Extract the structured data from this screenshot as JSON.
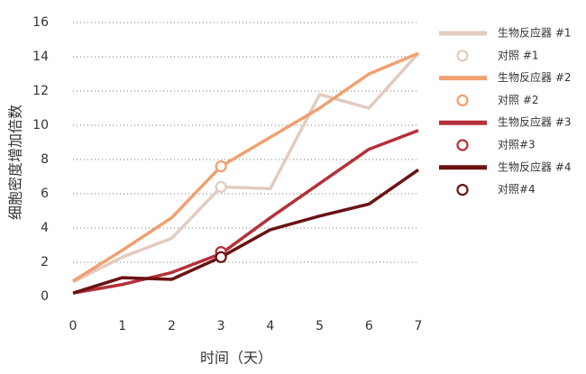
{
  "chart_data": {
    "type": "line",
    "x_label": "时间（天）",
    "y_label": "细胞密度增加倍数",
    "x": [
      0,
      1,
      2,
      3,
      4,
      5,
      6,
      7
    ],
    "xlim": [
      0,
      7
    ],
    "xticks": [
      0,
      1,
      2,
      3,
      4,
      5,
      6,
      7
    ],
    "ylim": [
      0,
      16
    ],
    "yticks": [
      0,
      2,
      4,
      6,
      8,
      10,
      12,
      14,
      16
    ],
    "grid": true,
    "legend": "right",
    "series": [
      {
        "name": "生物反应器 #1",
        "color": "#e3cbbf",
        "style": "line",
        "values": [
          0.85,
          2.3,
          3.4,
          6.4,
          6.3,
          11.8,
          11,
          14.2
        ]
      },
      {
        "name": "对照 #1",
        "color": "#e3cbbf",
        "style": "marker",
        "x": [
          3
        ],
        "values": [
          6.4
        ]
      },
      {
        "name": "生物反应器 #2",
        "color": "#f0a070",
        "style": "line",
        "values": [
          0.9,
          2.7,
          4.6,
          7.6,
          9.3,
          11,
          13,
          14.2
        ]
      },
      {
        "name": "对照 #2",
        "color": "#f0a070",
        "style": "marker",
        "x": [
          3
        ],
        "values": [
          7.6
        ]
      },
      {
        "name": "生物反应器 #3",
        "color": "#b5303a",
        "style": "line",
        "values": [
          0.2,
          0.7,
          1.4,
          2.5,
          4.6,
          6.6,
          8.6,
          9.7
        ]
      },
      {
        "name": "对照#3",
        "color": "#b5303a",
        "style": "marker",
        "x": [
          3
        ],
        "values": [
          2.6
        ]
      },
      {
        "name": "生物反应器 #4",
        "color": "#6b1212",
        "style": "line",
        "values": [
          0.2,
          1.1,
          1.0,
          2.3,
          3.9,
          4.7,
          5.4,
          7.4
        ]
      },
      {
        "name": "对照#4",
        "color": "#6b1212",
        "style": "marker",
        "x": [
          3
        ],
        "values": [
          2.3
        ]
      }
    ]
  }
}
